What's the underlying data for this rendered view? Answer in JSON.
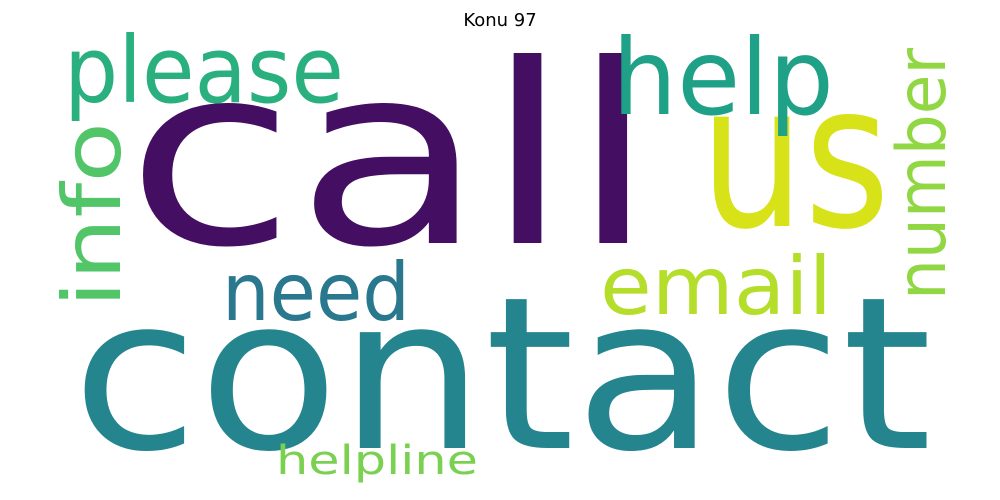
{
  "title": "Konu 97",
  "words": [
    {
      "text": "call",
      "color": "#440f62"
    },
    {
      "text": "contact",
      "color": "#25858e"
    },
    {
      "text": "us",
      "color": "#d8e219"
    },
    {
      "text": "please",
      "color": "#2ab07f"
    },
    {
      "text": "help",
      "color": "#1fa187"
    },
    {
      "text": "info",
      "color": "#52c569"
    },
    {
      "text": "need",
      "color": "#2a788e"
    },
    {
      "text": "email",
      "color": "#b5de2b"
    },
    {
      "text": "number",
      "color": "#90d743"
    },
    {
      "text": "helpline",
      "color": "#7ad151"
    }
  ]
}
